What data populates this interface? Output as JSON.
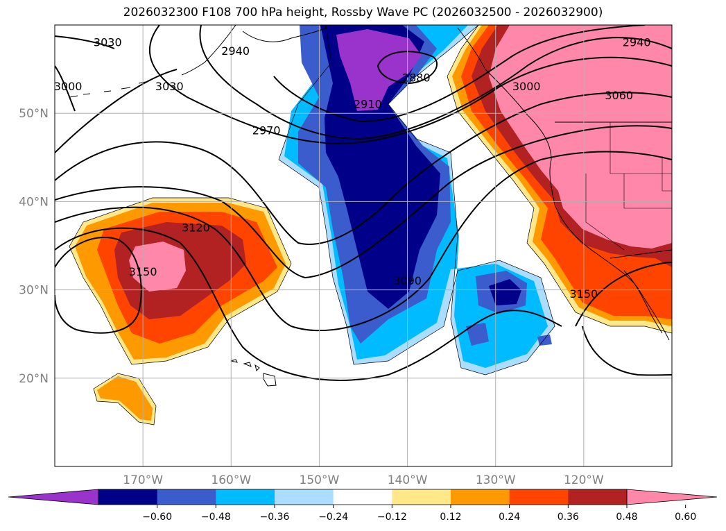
{
  "title": "2026032300 F108 700 hPa height, Rossby Wave PC (2026032500 - 2026032900)",
  "map": {
    "lon_range": [
      -180,
      -110
    ],
    "lat_range": [
      10,
      60
    ],
    "lon_ticks": [
      {
        "value": -170,
        "label": "170°W"
      },
      {
        "value": -160,
        "label": "160°W"
      },
      {
        "value": -150,
        "label": "150°W"
      },
      {
        "value": -140,
        "label": "140°W"
      },
      {
        "value": -130,
        "label": "130°W"
      },
      {
        "value": -120,
        "label": "120°W"
      }
    ],
    "lat_ticks": [
      {
        "value": 20,
        "label": "20°N"
      },
      {
        "value": 30,
        "label": "30°N"
      },
      {
        "value": 40,
        "label": "40°N"
      },
      {
        "value": 50,
        "label": "50°N"
      }
    ],
    "gridlines": true,
    "projection": "plate carree"
  },
  "contour_labels": [
    {
      "text": "3030",
      "lon": -174,
      "lat": 58
    },
    {
      "text": "3000",
      "lon": -178.5,
      "lat": 53
    },
    {
      "text": "3030",
      "lon": -167,
      "lat": 53
    },
    {
      "text": "2940",
      "lon": -159.5,
      "lat": 57
    },
    {
      "text": "2880",
      "lon": -139,
      "lat": 54
    },
    {
      "text": "2910",
      "lon": -144.5,
      "lat": 51
    },
    {
      "text": "2970",
      "lon": -156,
      "lat": 48
    },
    {
      "text": "3000",
      "lon": -126.5,
      "lat": 53
    },
    {
      "text": "3060",
      "lon": -116,
      "lat": 52
    },
    {
      "text": "2940",
      "lon": -114,
      "lat": 58
    },
    {
      "text": "3120",
      "lon": -164,
      "lat": 37
    },
    {
      "text": "3150",
      "lon": -170,
      "lat": 32
    },
    {
      "text": "3090",
      "lon": -140,
      "lat": 31
    },
    {
      "text": "3150",
      "lon": -120,
      "lat": 29.5
    }
  ],
  "colorbar": {
    "levels": [
      "−0.60",
      "−0.48",
      "−0.36",
      "−0.24",
      "−0.12",
      "0.12",
      "0.24",
      "0.36",
      "0.48",
      "0.60"
    ],
    "colors": [
      "#9933cc",
      "#000088",
      "#3a5ccc",
      "#00bbff",
      "#aaddff",
      "#ffffff",
      "#ffe88a",
      "#ff9900",
      "#ff4400",
      "#b22222",
      "#ff88aa"
    ],
    "extend": "both"
  }
}
